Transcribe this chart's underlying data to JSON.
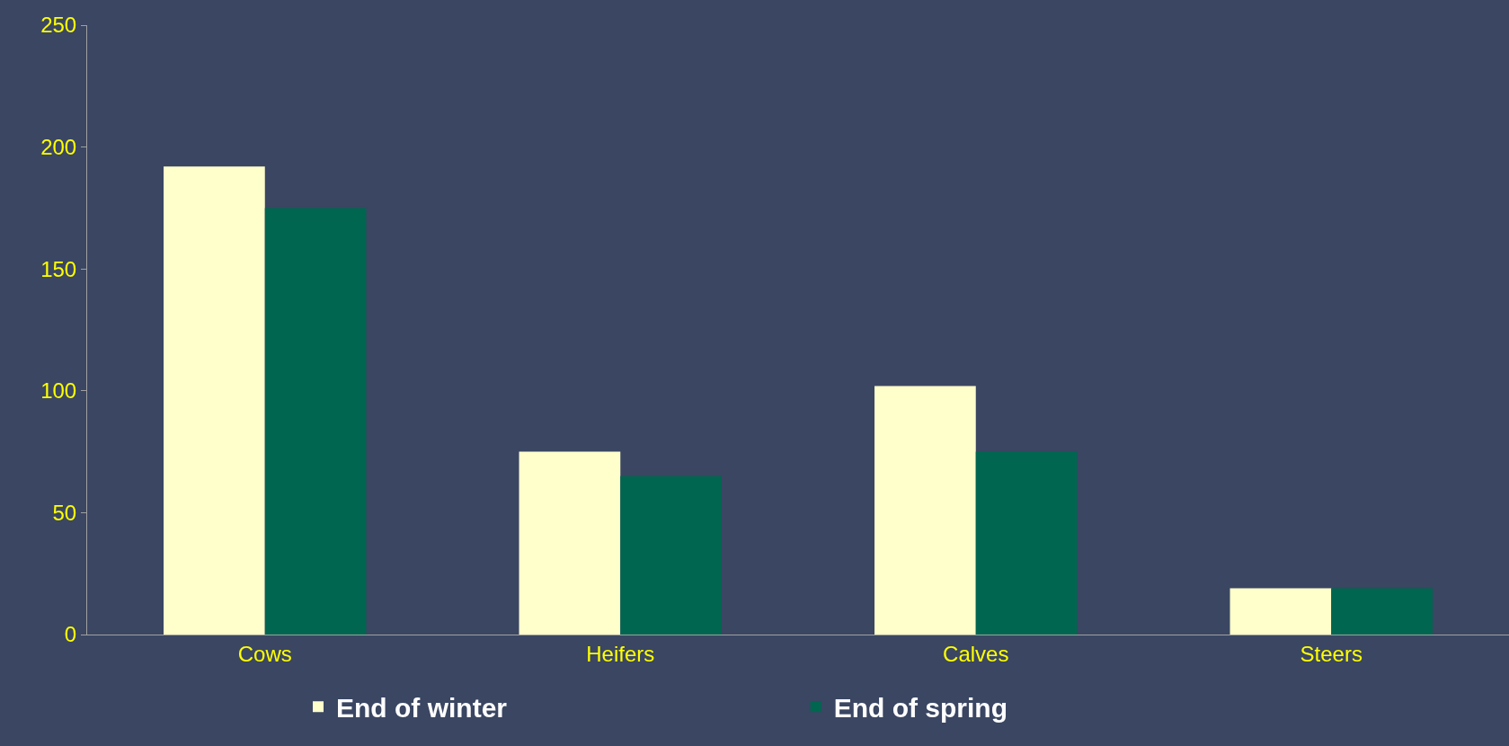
{
  "chart_data": {
    "type": "bar",
    "categories": [
      "Cows",
      "Heifers",
      "Calves",
      "Steers"
    ],
    "series": [
      {
        "name": "End of winter",
        "color": "#ffffcc",
        "values": [
          192,
          75,
          102,
          19
        ]
      },
      {
        "name": "End of spring",
        "color": "#006650",
        "values": [
          175,
          65,
          75,
          19
        ]
      }
    ],
    "ylim": [
      0,
      250
    ],
    "yticks": [
      0,
      50,
      100,
      150,
      200,
      250
    ],
    "grid": false,
    "legend": "bottom"
  }
}
